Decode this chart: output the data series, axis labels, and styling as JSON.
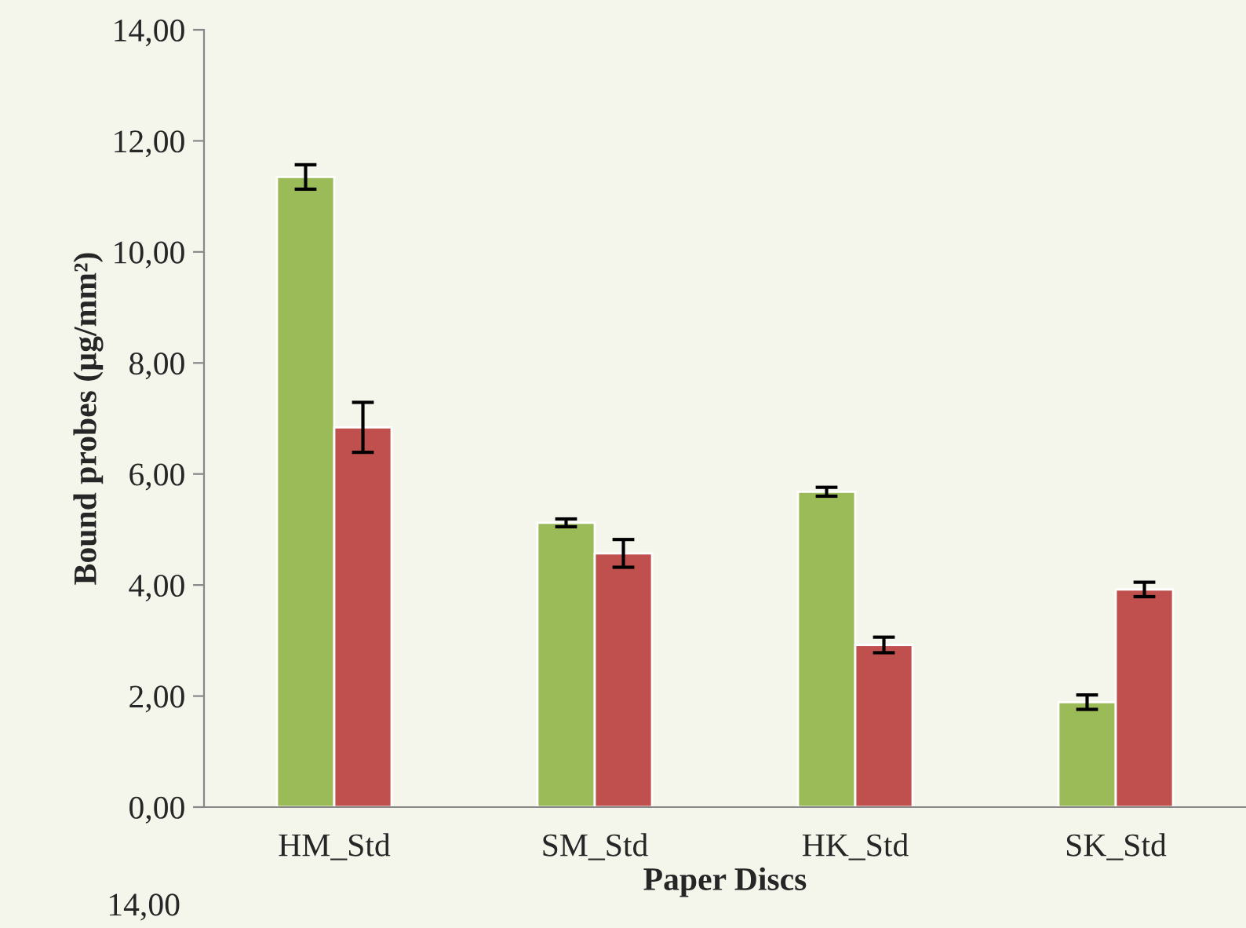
{
  "chart_data": {
    "type": "bar",
    "xlabel": "Paper Discs",
    "ylabel": "Bound probes (µg/mm²)",
    "categories": [
      "HM_Std",
      "SM_Std",
      "HK_Std",
      "SK_Std"
    ],
    "series": [
      {
        "color": "#9bbb59",
        "values": [
          11.35,
          5.12,
          5.68,
          1.89
        ],
        "errors": [
          0.22,
          0.07,
          0.08,
          0.13
        ]
      },
      {
        "color": "#c0504d",
        "values": [
          6.84,
          4.57,
          2.92,
          3.92
        ],
        "errors": [
          0.45,
          0.25,
          0.14,
          0.13
        ]
      }
    ],
    "ylim": [
      0,
      14
    ],
    "yticks": [
      {
        "value": 0,
        "label": "0,00"
      },
      {
        "value": 2,
        "label": "2,00"
      },
      {
        "value": 4,
        "label": "4,00"
      },
      {
        "value": 6,
        "label": "6,00"
      },
      {
        "value": 8,
        "label": "8,00"
      },
      {
        "value": 10,
        "label": "10,00"
      },
      {
        "value": 12,
        "label": "12,00"
      },
      {
        "value": 14,
        "label": "14,00"
      }
    ],
    "annotations": [
      "14,00"
    ],
    "grid": false,
    "legend": false
  }
}
